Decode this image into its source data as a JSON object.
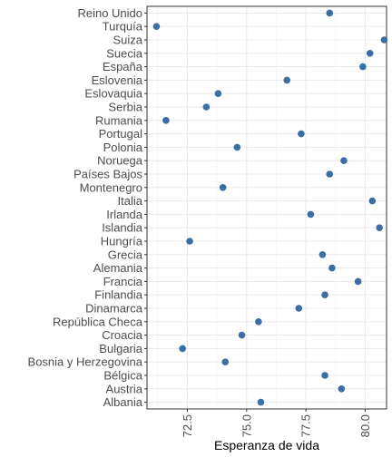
{
  "chart_data": {
    "type": "scatter",
    "title": "",
    "xlabel": "Esperanza de vida",
    "ylabel": "",
    "xlim": [
      70.8,
      80.9
    ],
    "x_ticks": [
      72.5,
      75.0,
      77.5,
      80.0
    ],
    "x_tick_labels": [
      "72.5",
      "75.0",
      "77.5",
      "80.0"
    ],
    "grid": true,
    "legend": "none",
    "point_color": "#3a6ea5",
    "categories": [
      "Reino Unido",
      "Turquía",
      "Suiza",
      "Suecia",
      "España",
      "Eslovenia",
      "Eslovaquia",
      "Serbia",
      "Rumania",
      "Portugal",
      "Polonia",
      "Noruega",
      "Países Bajos",
      "Montenegro",
      "Italia",
      "Irlanda",
      "Islandia",
      "Hungría",
      "Grecia",
      "Alemania",
      "Francia",
      "Finlandia",
      "Dinamarca",
      "República Checa",
      "Croacia",
      "Bulgaria",
      "Bosnia y Herzegovina",
      "Bélgica",
      "Austria",
      "Albania"
    ],
    "values": [
      78.5,
      71.2,
      80.8,
      80.2,
      79.9,
      76.7,
      73.8,
      73.3,
      71.6,
      77.3,
      74.6,
      79.1,
      78.5,
      74.0,
      80.3,
      77.7,
      80.6,
      72.6,
      78.2,
      78.6,
      79.7,
      78.3,
      77.2,
      75.5,
      74.8,
      72.3,
      74.1,
      78.3,
      79.0,
      75.6
    ]
  }
}
